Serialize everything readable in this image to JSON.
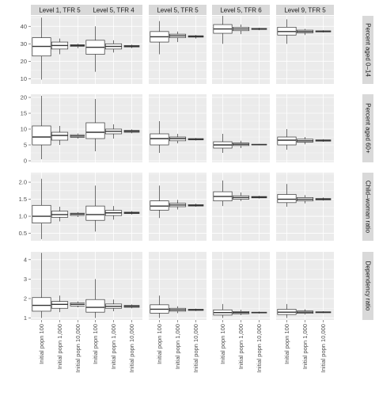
{
  "chart_data": {
    "type": "boxplot",
    "column_facets": [
      "Level 1, TFR 5",
      "Level 5, TFR 4",
      "Level 5, TFR 5",
      "Level 5, TFR 6",
      "Level 9, TFR 5"
    ],
    "row_facets": [
      "Percent aged 0–14",
      "Percent aged 60+",
      "Child–woman ratio",
      "Dependency ratio"
    ],
    "x_categories": [
      "Initial popn 100",
      "Initial popn 1,000",
      "Initial popn 10,000"
    ],
    "rows": [
      {
        "label": "Percent aged 0–14",
        "ylim": [
          7,
          46
        ],
        "yticks": [
          10,
          20,
          30,
          40
        ],
        "panels": [
          [
            [
              9.5,
              23,
              28.5,
              33.5,
              45
            ],
            [
              24,
              27,
              29,
              31,
              33
            ],
            [
              27.5,
              28.5,
              29,
              29.5,
              30
            ]
          ],
          [
            [
              14,
              24,
              28,
              32,
              40
            ],
            [
              25,
              27,
              28.5,
              30,
              32
            ],
            [
              27.5,
              28.2,
              28.6,
              29,
              29.5
            ]
          ],
          [
            [
              24,
              31,
              34,
              37,
              43
            ],
            [
              31,
              33.5,
              34.5,
              35.5,
              37
            ],
            [
              33,
              33.8,
              34.2,
              34.6,
              35
            ]
          ],
          [
            [
              30,
              36,
              38.5,
              41,
              46
            ],
            [
              35.5,
              37.5,
              38.5,
              39.5,
              41
            ],
            [
              37.8,
              38.2,
              38.5,
              38.8,
              39.2
            ]
          ],
          [
            [
              30,
              35,
              37,
              39.5,
              44
            ],
            [
              35,
              36.3,
              37,
              37.8,
              38.5
            ],
            [
              36.5,
              36.8,
              37.1,
              37.4,
              37.7
            ]
          ]
        ]
      },
      {
        "label": "Percent aged 60+",
        "ylim": [
          -0.5,
          21
        ],
        "yticks": [
          0,
          5,
          10,
          15,
          20
        ],
        "panels": [
          [
            [
              0.5,
              5,
              7.5,
              11,
              20.5
            ],
            [
              5,
              6.5,
              8,
              9,
              11
            ],
            [
              7,
              7.4,
              7.8,
              8.2,
              8.6
            ]
          ],
          [
            [
              3,
              7,
              9,
              12,
              19.5
            ],
            [
              7,
              8.5,
              9.3,
              10,
              11.5
            ],
            [
              8.7,
              9,
              9.3,
              9.6,
              9.9
            ]
          ],
          [
            [
              2.5,
              5,
              7,
              8.5,
              12.5
            ],
            [
              5.5,
              6.3,
              7,
              7.5,
              8.5
            ],
            [
              6.4,
              6.6,
              6.8,
              7,
              7.2
            ]
          ],
          [
            [
              2.5,
              4,
              5,
              6,
              8.5
            ],
            [
              4,
              4.8,
              5.2,
              5.6,
              6.3
            ],
            [
              4.9,
              5,
              5.1,
              5.2,
              5.3
            ]
          ],
          [
            [
              3.5,
              5,
              6.5,
              7.5,
              10
            ],
            [
              5.2,
              5.9,
              6.3,
              6.8,
              7.5
            ],
            [
              6,
              6.2,
              6.4,
              6.6,
              6.8
            ]
          ]
        ]
      },
      {
        "label": "Child–woman ratio",
        "ylim": [
          0.28,
          2.28
        ],
        "yticks": [
          0.5,
          1.0,
          1.5,
          2.0
        ],
        "panels": [
          [
            [
              0.33,
              0.8,
              1.0,
              1.32,
              2.1
            ],
            [
              0.85,
              0.97,
              1.05,
              1.15,
              1.28
            ],
            [
              0.98,
              1.02,
              1.06,
              1.09,
              1.12
            ]
          ],
          [
            [
              0.55,
              0.88,
              1.05,
              1.3,
              1.9
            ],
            [
              0.9,
              1.02,
              1.1,
              1.17,
              1.3
            ],
            [
              1.05,
              1.08,
              1.1,
              1.12,
              1.15
            ]
          ],
          [
            [
              0.95,
              1.18,
              1.3,
              1.45,
              1.9
            ],
            [
              1.2,
              1.28,
              1.33,
              1.38,
              1.48
            ],
            [
              1.28,
              1.3,
              1.32,
              1.34,
              1.37
            ]
          ],
          [
            [
              1.3,
              1.45,
              1.58,
              1.72,
              2.05
            ],
            [
              1.45,
              1.5,
              1.55,
              1.6,
              1.7
            ],
            [
              1.52,
              1.54,
              1.56,
              1.58,
              1.6
            ]
          ],
          [
            [
              1.28,
              1.4,
              1.5,
              1.64,
              1.95
            ],
            [
              1.38,
              1.45,
              1.5,
              1.55,
              1.62
            ],
            [
              1.46,
              1.48,
              1.5,
              1.52,
              1.55
            ]
          ]
        ]
      },
      {
        "label": "Dependency ratio",
        "ylim": [
          0.9,
          4.4
        ],
        "yticks": [
          1,
          2,
          3,
          4
        ],
        "panels": [
          [
            [
              1.0,
              1.35,
              1.65,
              2.05,
              4.35
            ],
            [
              1.3,
              1.5,
              1.7,
              1.85,
              2.15
            ],
            [
              1.55,
              1.62,
              1.7,
              1.78,
              1.85
            ]
          ],
          [
            [
              1.0,
              1.3,
              1.55,
              1.95,
              3.0
            ],
            [
              1.35,
              1.5,
              1.6,
              1.72,
              1.95
            ],
            [
              1.5,
              1.55,
              1.6,
              1.65,
              1.7
            ]
          ],
          [
            [
              1.0,
              1.25,
              1.45,
              1.68,
              2.15
            ],
            [
              1.25,
              1.35,
              1.42,
              1.5,
              1.6
            ],
            [
              1.36,
              1.39,
              1.42,
              1.45,
              1.48
            ]
          ],
          [
            [
              1.0,
              1.15,
              1.28,
              1.42,
              1.72
            ],
            [
              1.15,
              1.22,
              1.28,
              1.33,
              1.43
            ],
            [
              1.23,
              1.26,
              1.28,
              1.3,
              1.33
            ]
          ],
          [
            [
              1.0,
              1.18,
              1.3,
              1.45,
              1.72
            ],
            [
              1.18,
              1.24,
              1.3,
              1.36,
              1.45
            ],
            [
              1.25,
              1.27,
              1.3,
              1.32,
              1.35
            ]
          ]
        ]
      }
    ],
    "styles": {
      "panel_bg": "#ebebeb",
      "strip_bg": "#d9d9d9",
      "grid_major": "#ffffff",
      "box_fill": "#ffffff",
      "box_stroke": "#333333",
      "text_dark": "#1a1a1a",
      "tick_text": "#4d4d4d"
    }
  }
}
